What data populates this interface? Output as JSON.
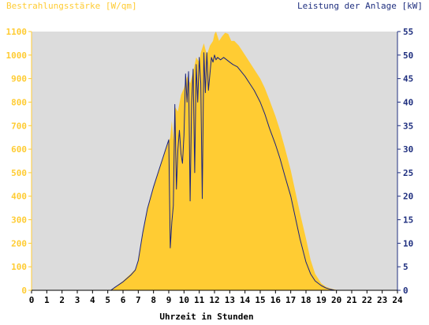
{
  "colors": {
    "background": "#ffffff",
    "plot_background": "#dcdcdc",
    "irradiance_fill": "#ffcc33",
    "irradiance_axis": "#ffcc33",
    "power_line": "#1a237e",
    "power_axis": "#1f2f7f",
    "x_axis_text": "#000000"
  },
  "chart_data": {
    "type": "area",
    "title": "",
    "xlabel": "Uhrzeit in Stunden",
    "ylabel_left": "Bestrahlungsstärke [W/qm]",
    "ylabel_right": "Leistung der Anlage [kW]",
    "xlim": [
      0,
      24
    ],
    "ylim_left": [
      0,
      1100
    ],
    "ylim_right": [
      0,
      55
    ],
    "x_ticks": [
      "0",
      "1",
      "2",
      "3",
      "4",
      "5",
      "6",
      "7",
      "8",
      "9",
      "10",
      "11",
      "12",
      "13",
      "14",
      "15",
      "16",
      "17",
      "18",
      "19",
      "20",
      "21",
      "22",
      "23",
      "24"
    ],
    "y_ticks_left": [
      "0",
      "100",
      "200",
      "300",
      "400",
      "500",
      "600",
      "700",
      "800",
      "900",
      "1000",
      "1100"
    ],
    "y_ticks_right": [
      "0",
      "5",
      "10",
      "15",
      "20",
      "25",
      "30",
      "35",
      "40",
      "45",
      "50",
      "55"
    ],
    "grid": false,
    "legend": "none",
    "series": [
      {
        "name": "Bestrahlungsstärke [W/qm]",
        "axis": "left",
        "style": "filled-area",
        "x": [
          0,
          5.2,
          5.5,
          6.0,
          6.5,
          6.8,
          7.0,
          7.3,
          7.6,
          8.0,
          8.4,
          8.8,
          9.0,
          9.1,
          9.2,
          9.3,
          9.4,
          9.6,
          9.8,
          10.0,
          10.2,
          10.4,
          10.6,
          10.8,
          11.0,
          11.1,
          11.3,
          11.5,
          11.7,
          11.9,
          12.0,
          12.1,
          12.3,
          12.5,
          12.7,
          12.9,
          13.1,
          13.3,
          13.6,
          14.0,
          14.3,
          14.6,
          15.0,
          15.3,
          15.6,
          16.0,
          16.3,
          16.6,
          17.0,
          17.3,
          17.6,
          18.0,
          18.3,
          18.6,
          19.0,
          19.3,
          19.6,
          19.9,
          20.1,
          24
        ],
        "y": [
          0,
          0,
          15,
          40,
          70,
          90,
          130,
          250,
          350,
          440,
          520,
          600,
          630,
          650,
          720,
          640,
          780,
          760,
          830,
          860,
          910,
          880,
          930,
          990,
          970,
          1010,
          1050,
          1000,
          1040,
          1060,
          1090,
          1100,
          1060,
          1080,
          1095,
          1090,
          1060,
          1060,
          1040,
          1000,
          970,
          940,
          900,
          860,
          810,
          740,
          680,
          610,
          510,
          420,
          330,
          220,
          130,
          70,
          30,
          15,
          8,
          3,
          0,
          0
        ]
      },
      {
        "name": "Leistung der Anlage [kW]",
        "axis": "right",
        "style": "line",
        "x": [
          0,
          5.2,
          5.5,
          6.0,
          6.5,
          6.8,
          7.0,
          7.3,
          7.6,
          8.0,
          8.4,
          8.8,
          9.0,
          9.1,
          9.2,
          9.3,
          9.4,
          9.5,
          9.6,
          9.7,
          9.8,
          9.9,
          10.0,
          10.1,
          10.2,
          10.3,
          10.4,
          10.5,
          10.6,
          10.7,
          10.8,
          10.9,
          11.0,
          11.1,
          11.2,
          11.3,
          11.4,
          11.5,
          11.6,
          11.7,
          11.8,
          11.9,
          12.0,
          12.1,
          12.2,
          12.4,
          12.6,
          12.8,
          13.0,
          13.2,
          13.5,
          14.0,
          14.3,
          14.6,
          15.0,
          15.3,
          15.6,
          16.0,
          16.3,
          16.6,
          17.0,
          17.3,
          17.6,
          18.0,
          18.3,
          18.6,
          19.0,
          19.3,
          19.6,
          19.9,
          20.1,
          24
        ],
        "y": [
          0,
          0,
          0.7,
          1.8,
          3.2,
          4.3,
          6.3,
          12.3,
          17.3,
          22.0,
          26.0,
          30.0,
          32.0,
          9.0,
          14.5,
          18.0,
          39.5,
          21.5,
          30.0,
          34.0,
          29.0,
          27.0,
          33.0,
          46.0,
          40.0,
          46.5,
          19.0,
          40.0,
          47.0,
          25.0,
          48.0,
          40.0,
          49.5,
          44.0,
          19.5,
          50.5,
          42.0,
          50.5,
          42.5,
          46.0,
          49.5,
          48.5,
          50.0,
          49.0,
          49.5,
          49.0,
          49.5,
          49.0,
          48.5,
          48.0,
          47.5,
          45.5,
          44.0,
          42.5,
          40.0,
          37.5,
          34.5,
          31.0,
          28.0,
          24.5,
          20.0,
          15.5,
          11.0,
          6.0,
          3.5,
          2.0,
          1.0,
          0.5,
          0.2,
          0,
          0,
          0
        ]
      }
    ]
  }
}
